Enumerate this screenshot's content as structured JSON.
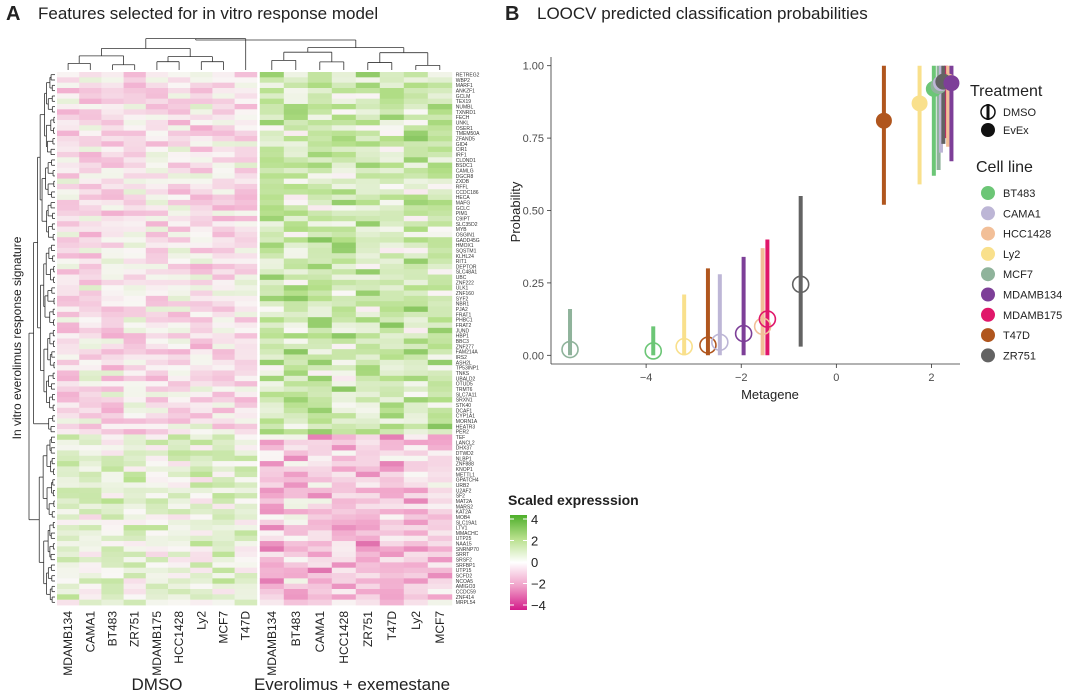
{
  "panel_a": {
    "letter": "A",
    "title": "Features selected for in vitro response model",
    "ylabel": "In vitro everolimus response signature",
    "group_labels": [
      "DMSO",
      "Everolimus + exemestane"
    ],
    "columns_dmso": [
      "MDAMB134",
      "CAMA1",
      "BT483",
      "ZR751",
      "MDAMB175",
      "HCC1428",
      "Ly2",
      "MCF7",
      "T47D"
    ],
    "columns_evex": [
      "MDAMB134",
      "BT483",
      "CAMA1",
      "HCC1428",
      "ZR751",
      "T47D",
      "Ly2",
      "MCF7"
    ],
    "genes": [
      "RETREG2",
      "WBP2",
      "MARF1",
      "ANKZF1",
      "GCLM",
      "TEX19",
      "NUMBL",
      "TXNRD1",
      "FECH",
      "UNKL",
      "OSER1",
      "TMEM50A",
      "ZFAND5",
      "GID4",
      "CIR1",
      "IRF1",
      "CLDND1",
      "BSDC1",
      "CAMLG",
      "DGCR8",
      "ZXDB",
      "RFFL",
      "CCDC186",
      "HECA",
      "MAFG",
      "GCLC",
      "PIM1",
      "C9IPT",
      "SLC35D2",
      "MYB",
      "OSGIN1",
      "GADD45G",
      "HMOX1",
      "SQSTM1",
      "KLHL24",
      "RIT1",
      "DEPTOR",
      "SLC48A1",
      "UBC",
      "ZNF222",
      "ULK1",
      "ZNF160",
      "SYF2",
      "NBR1",
      "PJA2",
      "FRAT1",
      "PHBC1",
      "FRAT2",
      "JUND",
      "HBP1",
      "BBC3",
      "ZNF277",
      "FAM214A",
      "IRS2",
      "ASH2L",
      "TP53INP1",
      "TNKS",
      "UBALD2",
      "OTUD5",
      "TRMT6",
      "SLC7A11",
      "SRXN1",
      "STK40",
      "DCAF1",
      "CYP1A1",
      "MORN1A",
      "HEATR3",
      "PER2",
      "TEF",
      "LANCL2",
      "DHX37",
      "DTWD2",
      "NLBP1",
      "ZNF888",
      "KNOP1",
      "METTL1",
      "GPATCH4",
      "URB2",
      "U2AF2",
      "SF2",
      "MAT2A",
      "MARS2",
      "KAT2A",
      "MOB4",
      "SLC19A1",
      "LTV1",
      "MMACHC",
      "UTP25",
      "NAA15",
      "SNRNP70",
      "SRRT",
      "SRSF2",
      "SRFBP1",
      "UTP15",
      "SCFD2",
      "NCOA5",
      "AMIGO3",
      "CCDC59",
      "ZNF414",
      "MRPL54"
    ],
    "colorbar": {
      "title": "Scaled expresssion",
      "ticks": [
        "4",
        "2",
        "0",
        "−2",
        "−4"
      ]
    }
  },
  "panel_b": {
    "letter": "B",
    "title": "LOOCV predicted classification probabilities"
  },
  "chart_data": {
    "type": "scatter",
    "title": "LOOCV predicted classification probabilities",
    "xlabel": "Metagene",
    "ylabel": "Probability",
    "xlim": [
      -6,
      2.6
    ],
    "ylim": [
      -0.03,
      1.03
    ],
    "xticks": [
      -4,
      -2,
      0,
      2
    ],
    "xtick_labels": [
      "−4",
      "−2",
      "0",
      "2"
    ],
    "yticks": [
      0,
      0.25,
      0.5,
      0.75,
      1.0
    ],
    "ytick_labels": [
      "0.00",
      "0.25",
      "0.50",
      "0.75",
      "1.00"
    ],
    "legend_treatment_title": "Treatment",
    "treatments": [
      "DMSO",
      "EvEx"
    ],
    "legend_cellline_title": "Cell line",
    "cell_lines": [
      {
        "name": "BT483",
        "color": "#6cc676"
      },
      {
        "name": "CAMA1",
        "color": "#bdb6d6"
      },
      {
        "name": "HCC1428",
        "color": "#f2bf98"
      },
      {
        "name": "Ly2",
        "color": "#f9e08c"
      },
      {
        "name": "MCF7",
        "color": "#8fb39b"
      },
      {
        "name": "MDAMB134",
        "color": "#7d3f98"
      },
      {
        "name": "MDAMB175",
        "color": "#e0176a"
      },
      {
        "name": "T47D",
        "color": "#b0561e"
      },
      {
        "name": "ZR751",
        "color": "#636363"
      }
    ],
    "points": [
      {
        "cell_line": "MCF7",
        "treatment": "DMSO",
        "x": -5.6,
        "y": 0.02,
        "lo": 0.0,
        "hi": 0.16
      },
      {
        "cell_line": "BT483",
        "treatment": "DMSO",
        "x": -3.85,
        "y": 0.015,
        "lo": 0.0,
        "hi": 0.1
      },
      {
        "cell_line": "Ly2",
        "treatment": "DMSO",
        "x": -3.2,
        "y": 0.03,
        "lo": 0.0,
        "hi": 0.21
      },
      {
        "cell_line": "T47D",
        "treatment": "DMSO",
        "x": -2.7,
        "y": 0.035,
        "lo": 0.0,
        "hi": 0.3
      },
      {
        "cell_line": "CAMA1",
        "treatment": "DMSO",
        "x": -2.45,
        "y": 0.045,
        "lo": 0.0,
        "hi": 0.28
      },
      {
        "cell_line": "MDAMB134",
        "treatment": "DMSO",
        "x": -1.95,
        "y": 0.075,
        "lo": 0.0,
        "hi": 0.34
      },
      {
        "cell_line": "HCC1428",
        "treatment": "DMSO",
        "x": -1.55,
        "y": 0.1,
        "lo": 0.0,
        "hi": 0.37
      },
      {
        "cell_line": "MDAMB175",
        "treatment": "DMSO",
        "x": -1.45,
        "y": 0.125,
        "lo": 0.0,
        "hi": 0.4
      },
      {
        "cell_line": "ZR751",
        "treatment": "DMSO",
        "x": -0.75,
        "y": 0.245,
        "lo": 0.03,
        "hi": 0.55
      },
      {
        "cell_line": "T47D",
        "treatment": "EvEx",
        "x": 1.0,
        "y": 0.81,
        "lo": 0.52,
        "hi": 1.0
      },
      {
        "cell_line": "Ly2",
        "treatment": "EvEx",
        "x": 1.75,
        "y": 0.87,
        "lo": 0.59,
        "hi": 1.0
      },
      {
        "cell_line": "BT483",
        "treatment": "EvEx",
        "x": 2.05,
        "y": 0.92,
        "lo": 0.62,
        "hi": 1.0
      },
      {
        "cell_line": "MCF7",
        "treatment": "EvEx",
        "x": 2.15,
        "y": 0.93,
        "lo": 0.64,
        "hi": 1.0
      },
      {
        "cell_line": "CAMA1",
        "treatment": "EvEx",
        "x": 2.2,
        "y": 0.94,
        "lo": 0.7,
        "hi": 1.0
      },
      {
        "cell_line": "MDAMB175",
        "treatment": "EvEx",
        "x": 2.3,
        "y": 0.945,
        "lo": 0.75,
        "hi": 1.0
      },
      {
        "cell_line": "HCC1428",
        "treatment": "EvEx",
        "x": 2.35,
        "y": 0.945,
        "lo": 0.72,
        "hi": 1.0
      },
      {
        "cell_line": "ZR751",
        "treatment": "EvEx",
        "x": 2.25,
        "y": 0.945,
        "lo": 0.73,
        "hi": 1.0
      },
      {
        "cell_line": "MDAMB134",
        "treatment": "EvEx",
        "x": 2.42,
        "y": 0.94,
        "lo": 0.67,
        "hi": 1.0
      }
    ]
  }
}
